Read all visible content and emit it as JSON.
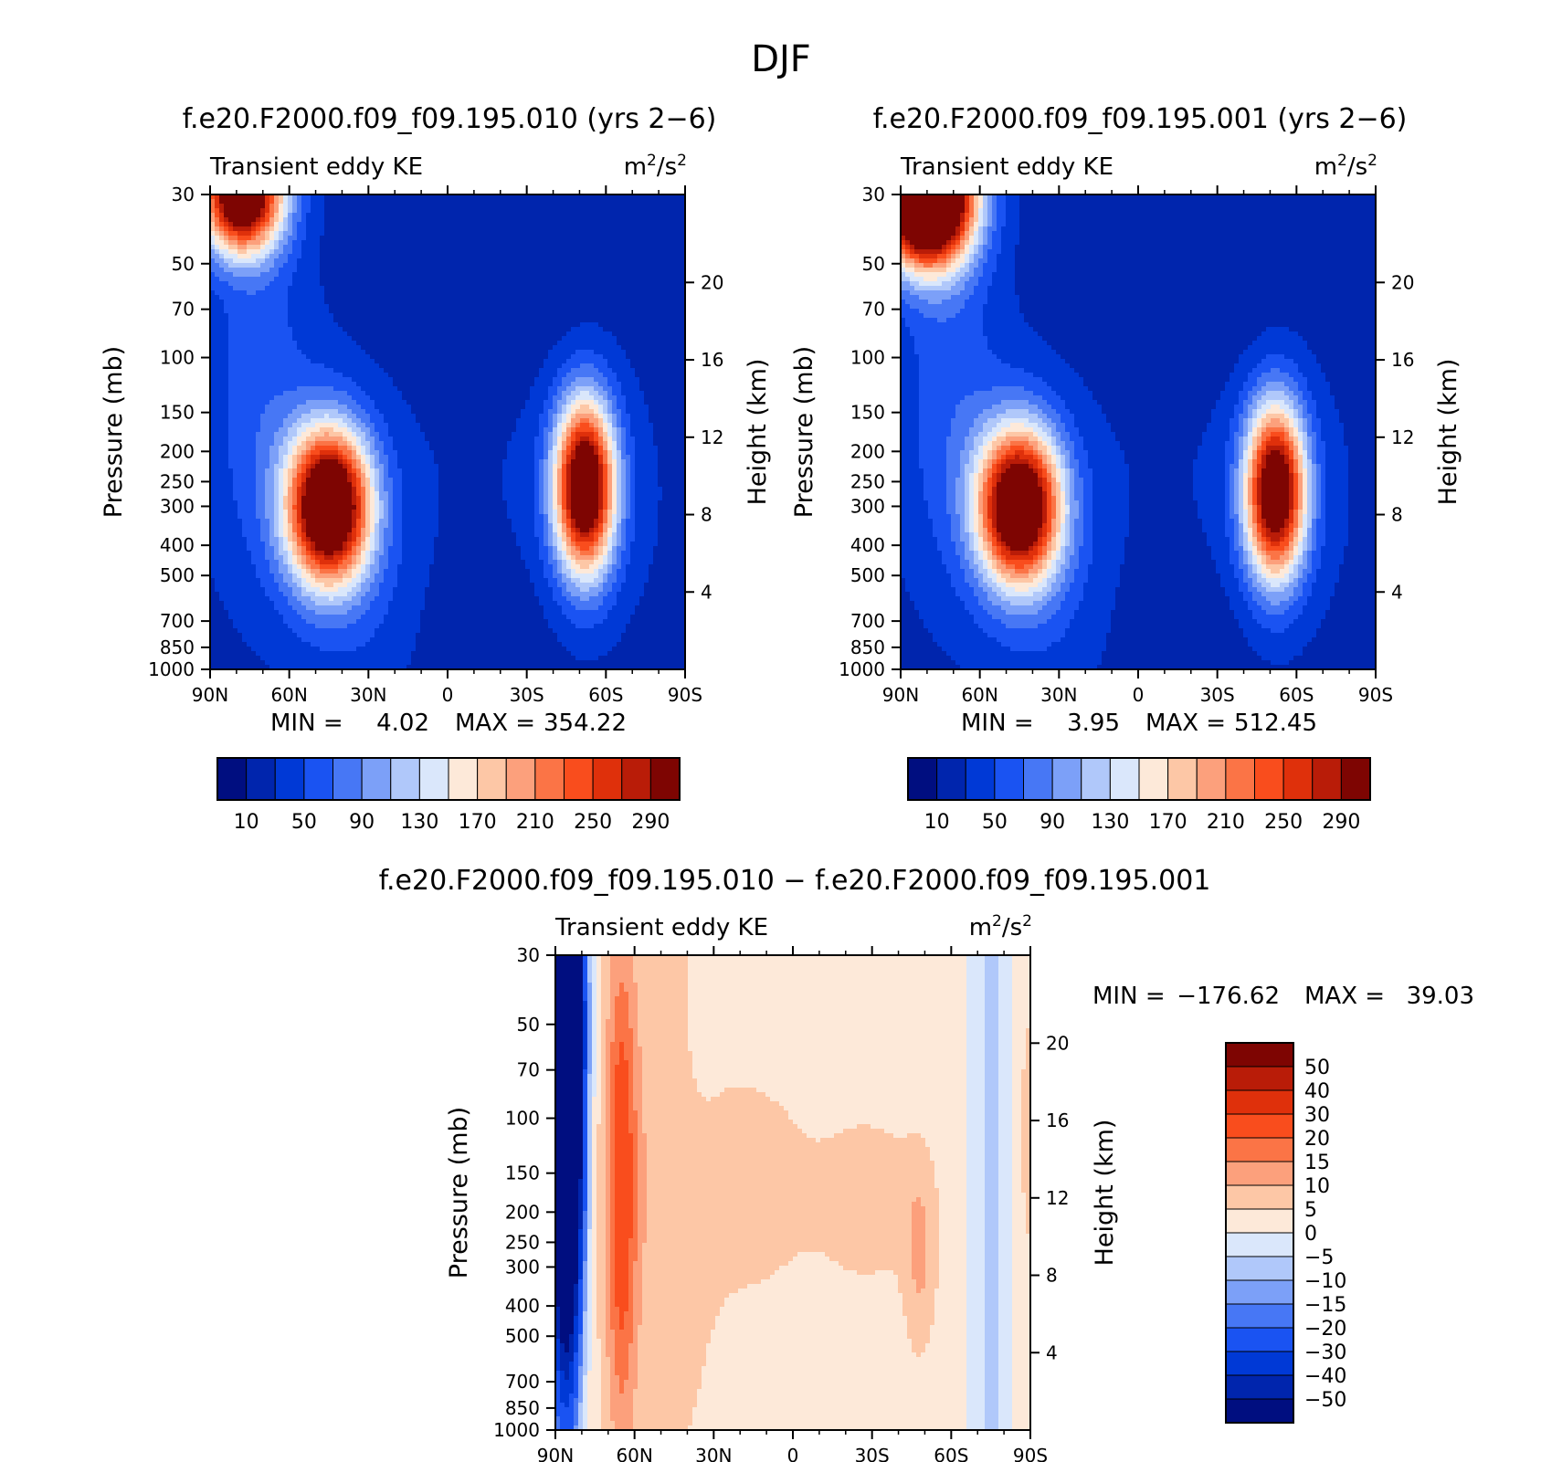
{
  "figure_title": "DJF",
  "colors": {
    "ke_scale": [
      "#000e80",
      "#0025ad",
      "#0039d6",
      "#1a53f2",
      "#4777f5",
      "#7ca0f8",
      "#b0c8fa",
      "#dae7fb",
      "#fde9d9",
      "#fdc7a6",
      "#fca07c",
      "#fb7446",
      "#f94d1d",
      "#df300b",
      "#b91c08",
      "#7e0502"
    ],
    "diff_scale": [
      "#000e80",
      "#0025ad",
      "#0039d6",
      "#1a53f2",
      "#4777f5",
      "#7ca0f8",
      "#b0c8fa",
      "#dae7fb",
      "#fde9d9",
      "#fdc7a6",
      "#fca07c",
      "#fb7446",
      "#f94d1d",
      "#df300b",
      "#b91c08",
      "#7e0502"
    ]
  },
  "chart_data": [
    {
      "type": "heatmap",
      "title": "f.e20.F2000.f09_f09.195.010 (yrs 2−6)",
      "left_label": "Transient eddy KE",
      "units": "m²/s²",
      "units_base": "m",
      "units_exp": "2",
      "units_rest": "/s",
      "units_exp2": "2",
      "ylabel": "Pressure (mb)",
      "ylabel_right": "Height (km)",
      "x_ticks": [
        "90N",
        "60N",
        "30N",
        "0",
        "30S",
        "60S",
        "90S"
      ],
      "y_ticks": [
        "30",
        "50",
        "70",
        "100",
        "150",
        "200",
        "250",
        "300",
        "400",
        "500",
        "700",
        "850",
        "1000"
      ],
      "y_ticks_right": [
        "20",
        "16",
        "12",
        "8",
        "4"
      ],
      "min_label": "MIN =",
      "min_value": "4.02",
      "max_label": "MAX =",
      "max_value": "354.22",
      "colorbar_labels": [
        "10",
        "50",
        "90",
        "130",
        "170",
        "210",
        "250",
        "290"
      ],
      "levels": [
        0,
        10,
        30,
        50,
        70,
        90,
        110,
        130,
        150,
        170,
        190,
        210,
        230,
        250,
        270,
        290
      ],
      "features": [
        {
          "lat": 78,
          "p": 30,
          "peak": 340,
          "dlat": 11,
          "dz": 0.3
        },
        {
          "lat": 45,
          "p": 300,
          "peak": 354,
          "dlat": 11,
          "dz": 0.4
        },
        {
          "lat": -52,
          "p": 260,
          "peak": 330,
          "dlat": 8,
          "dz": 0.45
        }
      ]
    },
    {
      "type": "heatmap",
      "title": "f.e20.F2000.f09_f09.195.001 (yrs 2−6)",
      "left_label": "Transient eddy KE",
      "units": "m²/s²",
      "units_base": "m",
      "units_exp": "2",
      "units_rest": "/s",
      "units_exp2": "2",
      "ylabel": "Pressure (mb)",
      "ylabel_right": "Height (km)",
      "x_ticks": [
        "90N",
        "60N",
        "30N",
        "0",
        "30S",
        "60S",
        "90S"
      ],
      "y_ticks": [
        "30",
        "50",
        "70",
        "100",
        "150",
        "200",
        "250",
        "300",
        "400",
        "500",
        "700",
        "850",
        "1000"
      ],
      "y_ticks_right": [
        "20",
        "16",
        "12",
        "8",
        "4"
      ],
      "min_label": "MIN =",
      "min_value": "3.95",
      "max_label": "MAX =",
      "max_value": "512.45",
      "colorbar_labels": [
        "10",
        "50",
        "90",
        "130",
        "170",
        "210",
        "250",
        "290"
      ],
      "levels": [
        0,
        10,
        30,
        50,
        70,
        90,
        110,
        130,
        150,
        170,
        190,
        210,
        230,
        250,
        270,
        290
      ],
      "features": [
        {
          "lat": 80,
          "p": 30,
          "peak": 510,
          "dlat": 12,
          "dz": 0.35
        },
        {
          "lat": 45,
          "p": 300,
          "peak": 340,
          "dlat": 11,
          "dz": 0.4
        },
        {
          "lat": -52,
          "p": 270,
          "peak": 320,
          "dlat": 8,
          "dz": 0.45
        }
      ]
    },
    {
      "type": "heatmap",
      "title": "f.e20.F2000.f09_f09.195.010 − f.e20.F2000.f09_f09.195.001",
      "left_label": "Transient eddy KE",
      "units": "m²/s²",
      "units_base": "m",
      "units_exp": "2",
      "units_rest": "/s",
      "units_exp2": "2",
      "ylabel": "Pressure (mb)",
      "ylabel_right": "Height (km)",
      "x_ticks": [
        "90N",
        "60N",
        "30N",
        "0",
        "30S",
        "60S",
        "90S"
      ],
      "y_ticks": [
        "30",
        "50",
        "70",
        "100",
        "150",
        "200",
        "250",
        "300",
        "400",
        "500",
        "700",
        "850",
        "1000"
      ],
      "y_ticks_right": [
        "20",
        "16",
        "12",
        "8",
        "4"
      ],
      "min_label": "MIN =",
      "min_value": "−176.62",
      "max_label": "MAX =",
      "max_value": "39.03",
      "colorbar_labels": [
        "50",
        "40",
        "30",
        "20",
        "15",
        "10",
        "5",
        "0",
        "−5",
        "−10",
        "−15",
        "−20",
        "−30",
        "−40",
        "−50"
      ],
      "levels": [
        -60,
        -50,
        -40,
        -30,
        -20,
        -15,
        -10,
        -5,
        0,
        5,
        10,
        15,
        20,
        30,
        40,
        50
      ]
    }
  ]
}
